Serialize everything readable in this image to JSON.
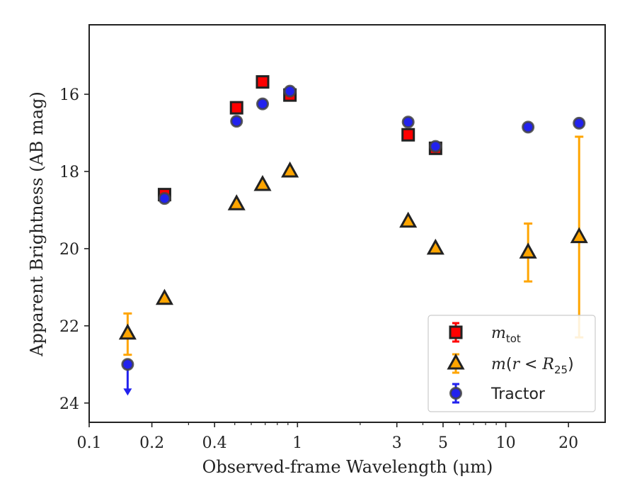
{
  "chart_data": {
    "type": "scatter",
    "title": "",
    "xlabel": "Observed-frame Wavelength (μm)",
    "ylabel": "Apparent Brightness (AB mag)",
    "xscale": "log",
    "xlim": [
      0.1,
      30
    ],
    "ylim": [
      24.5,
      14.2
    ],
    "y_inverted": true,
    "grid": false,
    "legend_position": "lower-right",
    "x_tick_labels": [
      "0.1",
      "0.2",
      "0.4",
      "1",
      "3",
      "5",
      "10",
      "20"
    ],
    "x_ticks": [
      0.1,
      0.2,
      0.4,
      1,
      3,
      5,
      10,
      20
    ],
    "y_tick_labels": [
      "16",
      "18",
      "20",
      "22",
      "24"
    ],
    "y_ticks": [
      16,
      18,
      20,
      22,
      24
    ],
    "series": [
      {
        "name": "m_tot",
        "label_main": "m",
        "label_sub": "tot",
        "marker": "square",
        "color": "#ff0000",
        "edgecolor": "#222222",
        "points": [
          {
            "x": 0.23,
            "y": 18.6
          },
          {
            "x": 0.51,
            "y": 16.35
          },
          {
            "x": 0.68,
            "y": 15.68
          },
          {
            "x": 0.92,
            "y": 16.02
          },
          {
            "x": 3.4,
            "y": 17.05
          },
          {
            "x": 4.6,
            "y": 17.4
          }
        ]
      },
      {
        "name": "m(r < R25)",
        "label_main": "m(r < R",
        "label_sub": "25",
        "label_end": ")",
        "marker": "triangle",
        "color": "#ffa500",
        "edgecolor": "#222222",
        "points": [
          {
            "x": 0.153,
            "y": 22.2,
            "ylow": 21.68,
            "yhigh": 22.75
          },
          {
            "x": 0.23,
            "y": 21.3
          },
          {
            "x": 0.51,
            "y": 18.85
          },
          {
            "x": 0.68,
            "y": 18.35
          },
          {
            "x": 0.92,
            "y": 18.0
          },
          {
            "x": 3.4,
            "y": 19.3
          },
          {
            "x": 4.6,
            "y": 20.0
          },
          {
            "x": 12.8,
            "y": 20.1,
            "ylow": 19.35,
            "yhigh": 20.85
          },
          {
            "x": 22.5,
            "y": 19.7,
            "ylow": 17.1,
            "yhigh": 22.3
          }
        ]
      },
      {
        "name": "Tractor",
        "marker": "circle",
        "color": "#2222ee",
        "edgecolor": "#444444",
        "points": [
          {
            "x": 0.153,
            "y": 23.0,
            "upper_limit": true
          },
          {
            "x": 0.23,
            "y": 18.7
          },
          {
            "x": 0.51,
            "y": 16.7
          },
          {
            "x": 0.68,
            "y": 16.25
          },
          {
            "x": 0.92,
            "y": 15.92
          },
          {
            "x": 3.4,
            "y": 16.72
          },
          {
            "x": 4.6,
            "y": 17.35
          },
          {
            "x": 12.8,
            "y": 16.85
          },
          {
            "x": 22.5,
            "y": 16.75
          }
        ]
      }
    ]
  }
}
